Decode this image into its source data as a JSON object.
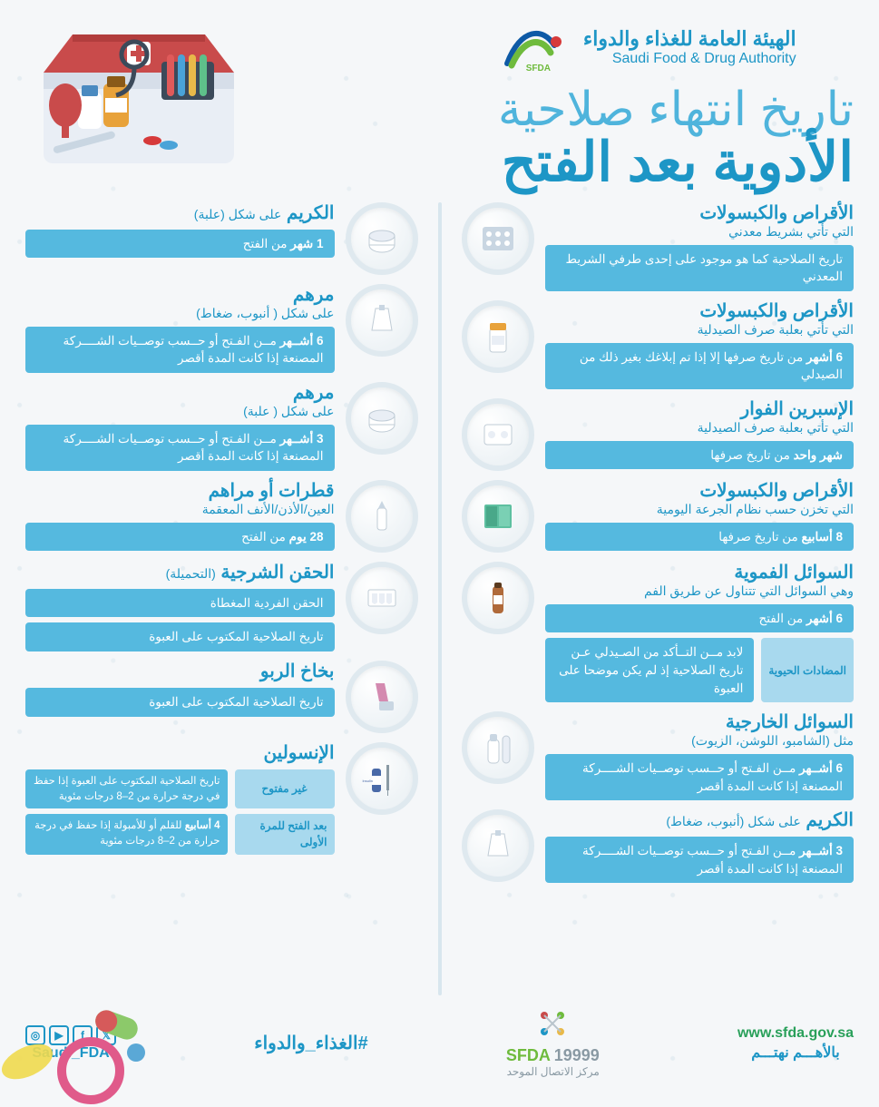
{
  "brand": {
    "ar": "الهيئة العامة للغذاء والدواء",
    "en": "Saudi Food & Drug Authority",
    "logo_abbr": "SFDA"
  },
  "title": {
    "line1": "تاريخ انتهاء صلاحية",
    "line2": "الأدوية بعد الفتح"
  },
  "colors": {
    "main_blue": "#1d96c6",
    "light_blue": "#55b9df",
    "pale_blue": "#a8d9ee",
    "green": "#29a05a"
  },
  "right_col": [
    {
      "cat": "الأقراص والكبسولات",
      "sub": "التي تأتي بشريط معدني",
      "bars": [
        "تاريخ الصلاحية كما هو موجود على إحدى طرفي الشريط المعدني"
      ]
    },
    {
      "cat": "الأقراص والكبسولات",
      "sub": "التي تأتي بعلبة صرف الصيدلية",
      "bars": [
        "<b>6 أشهر</b> من تاريخ صرفها إلا إذا تم إبلاغك بغير ذلك من الصيدلي"
      ]
    },
    {
      "cat": "الإسبرين الفوار",
      "sub": "التي تأتي بعلبة صرف الصيدلية",
      "bars": [
        "<b>شهر واحد</b> من تاريخ صرفها"
      ]
    },
    {
      "cat": "الأقراص والكبسولات",
      "sub": "التي تخزن حسب نظام الجرعة اليومية",
      "bars": [
        "<b>8 أسابيع</b> من تاريخ صرفها"
      ]
    },
    {
      "cat": "السوائل الفموية",
      "sub": "وهي السوائل التي تتناول عن طريق الفم",
      "bars": [
        "<b>6 أشهر</b> من الفتح"
      ],
      "extra_split": {
        "tag": "المضادات الحيوية",
        "text": "لابد مــن التــأكد من الصـيدلي عـن تاريخ الصلاحية إذ لم يكن موضحا على العبوة"
      }
    },
    {
      "cat": "السوائل الخارجية",
      "sub": "مثل (الشامبو، اللوشن، الزيوت)",
      "bars": [
        "<b>6 أشــهر</b> مــن الفـتح أو حــسب توصــيات الشــــركة المصنعة إذا كانت المدة أقصر"
      ]
    },
    {
      "cat": "الكريم",
      "sub_inline": "على شكل (أنبوب، ضغاط)",
      "bars": [
        "<b>3 أشــهر</b> مــن الفـتح أو حــسب توصــيات الشــــركة المصنعة إذا كانت المدة أقصر"
      ]
    }
  ],
  "left_col": [
    {
      "cat": "الكريم",
      "sub_inline": "على شكل (علبة)",
      "bars": [
        "<b>1 شهر</b> من الفتح"
      ]
    },
    {
      "cat": "مرهم",
      "sub": "على شكل ( أنبوب، ضغاط)",
      "bars": [
        "<b>6 أشــهر</b> مــن الفـتح أو حــسب توصــيات الشــــركة المصنعة إذا كانت المدة أقصر"
      ]
    },
    {
      "cat": "مرهم",
      "sub": "على شكل ( علبة)",
      "bars": [
        "<b>3 أشــهر</b> مــن الفـتح أو حــسب توصــيات الشــــركة المصنعة إذا كانت المدة أقصر"
      ]
    },
    {
      "cat": "قطرات أو مراهم",
      "sub": "العين/الأذن/الأنف المعقمة",
      "bars": [
        "<b>28 يوم</b> من الفتح"
      ]
    },
    {
      "cat": "الحقن الشرجية",
      "sub_inline": "(التحميلة)",
      "bars": [
        "الحقن الفردية المغطاة",
        "تاريخ الصلاحية المكتوب على العبوة"
      ]
    },
    {
      "cat": "بخاخ الربو",
      "bars": [
        "تاريخ الصلاحية المكتوب على العبوة"
      ]
    },
    {
      "cat": "الإنسولين",
      "two_split": [
        {
          "mini": "غير مفتوح",
          "text": "تاريخ الصلاحية المكتوب على العبوة إذا حفظ في درجة حرارة من 2–8 درجات مئوية"
        },
        {
          "mini": "بعد الفتح للمرة الأولى",
          "text": "<b>4 أسابيع</b> للقلم أو للأمبولة إذا حفظ في درجة حرارة من 2–8 درجات مئوية"
        }
      ]
    }
  ],
  "footer": {
    "website": "www.sfda.gov.sa",
    "slogan": "بالأهـــم نهتـــم",
    "call_center": {
      "abbr": "SFDA",
      "num": "19999",
      "label": "مركز الاتصال الموحد"
    },
    "hashtag": "#الغذاء_والدواء",
    "handle": "Saudi_FDA"
  }
}
